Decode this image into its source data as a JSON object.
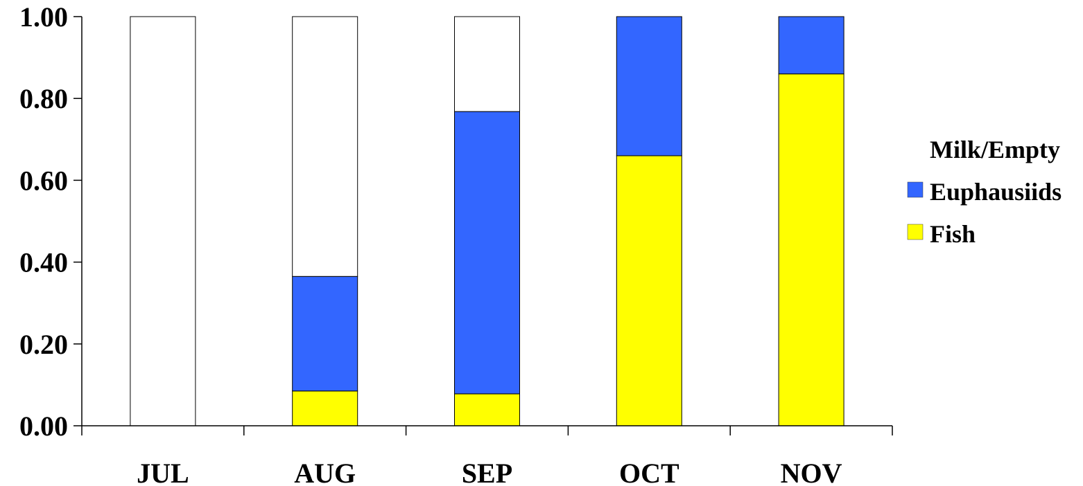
{
  "chart_data": {
    "type": "bar",
    "stacked": true,
    "categories": [
      "JUL",
      "AUG",
      "SEP",
      "OCT",
      "NOV"
    ],
    "series": [
      {
        "name": "Fish",
        "color": "#ffff00",
        "values": [
          0.0,
          0.085,
          0.078,
          0.66,
          0.86
        ]
      },
      {
        "name": "Euphausiids",
        "color": "#3366ff",
        "values": [
          0.0,
          0.28,
          0.69,
          0.34,
          0.14
        ]
      },
      {
        "name": "Milk/Empty",
        "color": "#ffffff",
        "values": [
          1.0,
          0.635,
          0.232,
          0.0,
          0.0
        ]
      }
    ],
    "yticks": [
      "0.00",
      "0.20",
      "0.40",
      "0.60",
      "0.80",
      "1.00"
    ],
    "ylim": [
      0,
      1
    ],
    "legend": {
      "placement": "right",
      "order": [
        "Milk/Empty",
        "Euphausiids",
        "Fish"
      ]
    },
    "grid": false,
    "title": "",
    "xlabel": "",
    "ylabel": ""
  }
}
